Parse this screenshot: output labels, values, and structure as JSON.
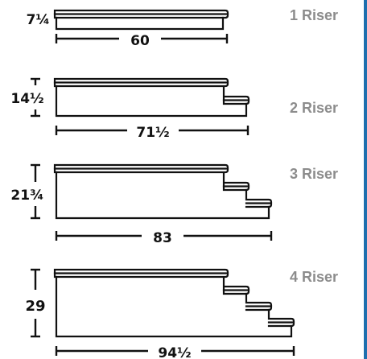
{
  "colors": {
    "line": "#111111",
    "label": "#8c8c8c",
    "border": "#1e6fae",
    "background": "#ffffff"
  },
  "risers": [
    {
      "label": "1 Riser",
      "steps": 1,
      "height": "7¼",
      "width": "60"
    },
    {
      "label": "2 Riser",
      "steps": 2,
      "height": "14½",
      "width": "71½"
    },
    {
      "label": "3 Riser",
      "steps": 3,
      "height": "21¾",
      "width": "83"
    },
    {
      "label": "4 Riser",
      "steps": 4,
      "height": "29",
      "width": "94½"
    }
  ]
}
